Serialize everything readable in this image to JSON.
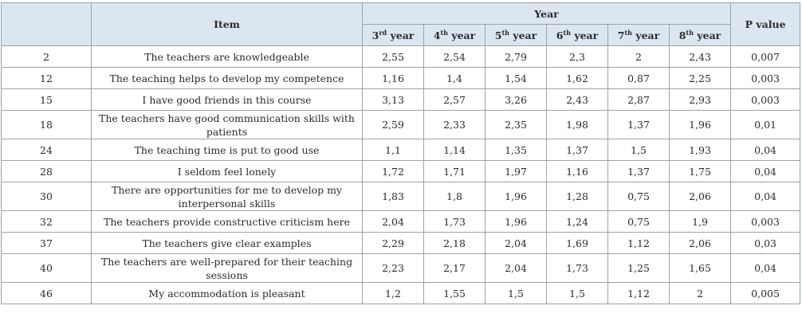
{
  "table": {
    "headers": {
      "item": "Item",
      "year_group": "Year",
      "p_value": "P value",
      "years": [
        {
          "num": "3",
          "sup": "rd",
          "suffix": " year"
        },
        {
          "num": "4",
          "sup": "th",
          "suffix": " year"
        },
        {
          "num": "5",
          "sup": "th",
          "suffix": " year"
        },
        {
          "num": "6",
          "sup": "th",
          "suffix": " year"
        },
        {
          "num": "7",
          "sup": "th",
          "suffix": " year"
        },
        {
          "num": "8",
          "sup": "th",
          "suffix": " year"
        }
      ]
    },
    "rows": [
      {
        "no": "2",
        "item": "The teachers are knowledgeable",
        "values": [
          "2,55",
          "2,54",
          "2,79",
          "2,3",
          "2",
          "2,43"
        ],
        "p": "0,007"
      },
      {
        "no": "12",
        "item": "The teaching helps to develop my competence",
        "values": [
          "1,16",
          "1,4",
          "1,54",
          "1,62",
          "0,87",
          "2,25"
        ],
        "p": "0,003"
      },
      {
        "no": "15",
        "item": "I have good friends in this course",
        "values": [
          "3,13",
          "2,57",
          "3,26",
          "2,43",
          "2,87",
          "2,93"
        ],
        "p": "0,003"
      },
      {
        "no": "18",
        "item": "The teachers have good communication skills with patients",
        "values": [
          "2,59",
          "2,33",
          "2,35",
          "1,98",
          "1,37",
          "1,96"
        ],
        "p": "0,01"
      },
      {
        "no": "24",
        "item": "The teaching time is put to good use",
        "values": [
          "1,1",
          "1,14",
          "1,35",
          "1,37",
          "1,5",
          "1,93"
        ],
        "p": "0,04"
      },
      {
        "no": "28",
        "item": "I seldom feel lonely",
        "values": [
          "1,72",
          "1,71",
          "1,97",
          "1,16",
          "1,37",
          "1,75"
        ],
        "p": "0,04"
      },
      {
        "no": "30",
        "item": "There are opportunities for me to develop my interpersonal skills",
        "values": [
          "1,83",
          "1,8",
          "1,96",
          "1,28",
          "0,75",
          "2,06"
        ],
        "p": "0,04"
      },
      {
        "no": "32",
        "item": "The teachers provide constructive criticism here",
        "values": [
          "2,04",
          "1,73",
          "1,96",
          "1,24",
          "0,75",
          "1,9"
        ],
        "p": "0,003"
      },
      {
        "no": "37",
        "item": "The teachers give clear examples",
        "values": [
          "2,29",
          "2,18",
          "2,04",
          "1,69",
          "1,12",
          "2,06"
        ],
        "p": "0,03"
      },
      {
        "no": "40",
        "item": "The teachers are well-prepared for their teaching sessions",
        "values": [
          "2,23",
          "2,17",
          "2,04",
          "1,73",
          "1,25",
          "1,65"
        ],
        "p": "0,04"
      },
      {
        "no": "46",
        "item": "My accommodation is pleasant",
        "values": [
          "1,2",
          "1,55",
          "1,5",
          "1,5",
          "1,12",
          "2"
        ],
        "p": "0,005"
      }
    ]
  }
}
